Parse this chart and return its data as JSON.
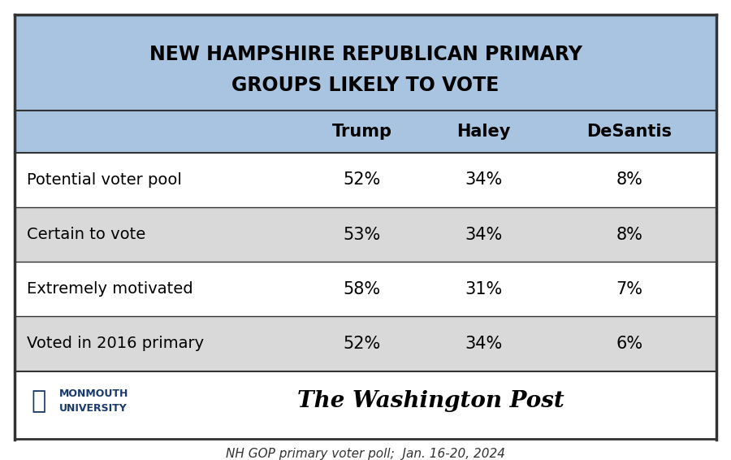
{
  "title_line1": "NEW HAMPSHIRE REPUBLICAN PRIMARY",
  "title_line2": "GROUPS LIKELY TO VOTE",
  "title_bg_color": "#a8c4e0",
  "header_cols": [
    "Trump",
    "Haley",
    "DeSantis"
  ],
  "row_labels": [
    "Potential voter pool",
    "Certain to vote",
    "Extremely motivated",
    "Voted in 2016 primary"
  ],
  "data": [
    [
      "52%",
      "34%",
      "8%"
    ],
    [
      "53%",
      "34%",
      "8%"
    ],
    [
      "58%",
      "31%",
      "7%"
    ],
    [
      "52%",
      "34%",
      "6%"
    ]
  ],
  "row_bg_colors": [
    "#ffffff",
    "#d9d9d9",
    "#ffffff",
    "#d9d9d9"
  ],
  "footer_bg_color": "#ffffff",
  "border_color": "#333333",
  "footnote": "NH GOP primary voter poll;  Jan. 16-20, 2024",
  "outer_border_color": "#555555"
}
